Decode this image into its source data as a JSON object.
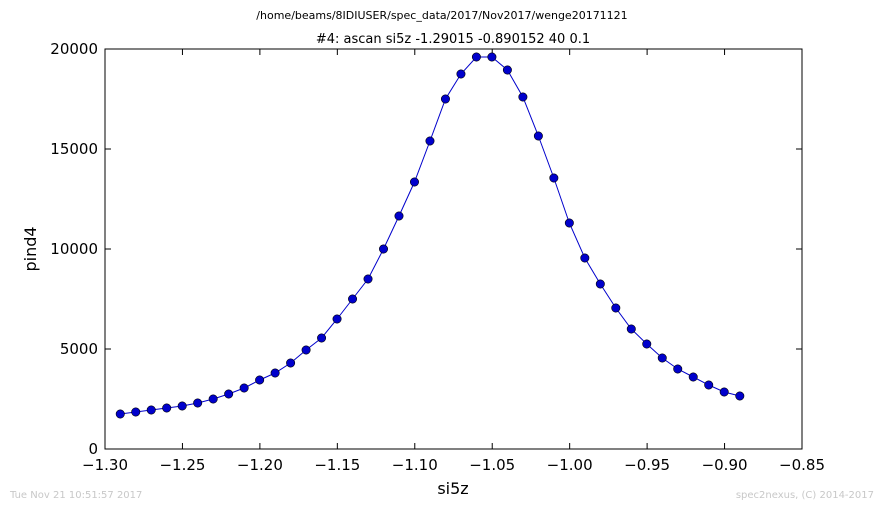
{
  "figure": {
    "file_title": "/home/beams/8IDIUSER/spec_data/2017/Nov2017/wenge20171121",
    "footer_left": "Tue Nov 21 10:51:57 2017",
    "footer_right": "spec2nexus, (C) 2014-2017"
  },
  "chart_data": {
    "type": "line",
    "title": "#4: ascan  si5z -1.29015 -0.890152  40 0.1",
    "xlabel": "si5z",
    "ylabel": "pind4",
    "xlim": [
      -1.3,
      -0.85
    ],
    "ylim": [
      0,
      20000
    ],
    "xticks": [
      -1.3,
      -1.25,
      -1.2,
      -1.15,
      -1.1,
      -1.05,
      -1.0,
      -0.95,
      -0.9,
      -0.85
    ],
    "xtick_labels": [
      "−1.30",
      "−1.25",
      "−1.20",
      "−1.15",
      "−1.10",
      "−1.05",
      "−1.00",
      "−0.95",
      "−0.90",
      "−0.85"
    ],
    "yticks": [
      0,
      5000,
      10000,
      15000,
      20000
    ],
    "ytick_labels": [
      "0",
      "5000",
      "10000",
      "15000",
      "20000"
    ],
    "grid": false,
    "series": [
      {
        "color": "#0000cc",
        "marker": "circle",
        "x": [
          -1.29015,
          -1.28015,
          -1.27015,
          -1.26016,
          -1.25016,
          -1.24016,
          -1.23016,
          -1.22016,
          -1.21017,
          -1.20017,
          -1.19017,
          -1.18017,
          -1.17017,
          -1.16018,
          -1.15018,
          -1.14018,
          -1.13018,
          -1.12018,
          -1.11019,
          -1.10019,
          -1.09019,
          -1.08019,
          -1.07019,
          -1.0602,
          -1.0502,
          -1.0402,
          -1.0302,
          -1.0202,
          -1.01021,
          -1.00021,
          -0.99021,
          -0.98021,
          -0.97021,
          -0.96022,
          -0.95022,
          -0.94022,
          -0.93022,
          -0.92022,
          -0.91023,
          -0.90023,
          -0.890152
        ],
        "y": [
          1750,
          1850,
          1950,
          2050,
          2150,
          2300,
          2500,
          2750,
          3050,
          3450,
          3800,
          4300,
          4950,
          5550,
          6500,
          7500,
          8500,
          10000,
          11650,
          13350,
          15400,
          17500,
          18750,
          19600,
          19600,
          18950,
          17600,
          15650,
          13550,
          11300,
          9550,
          8250,
          7050,
          6000,
          5250,
          4550,
          4000,
          3600,
          3200,
          2850,
          2650
        ]
      }
    ]
  }
}
